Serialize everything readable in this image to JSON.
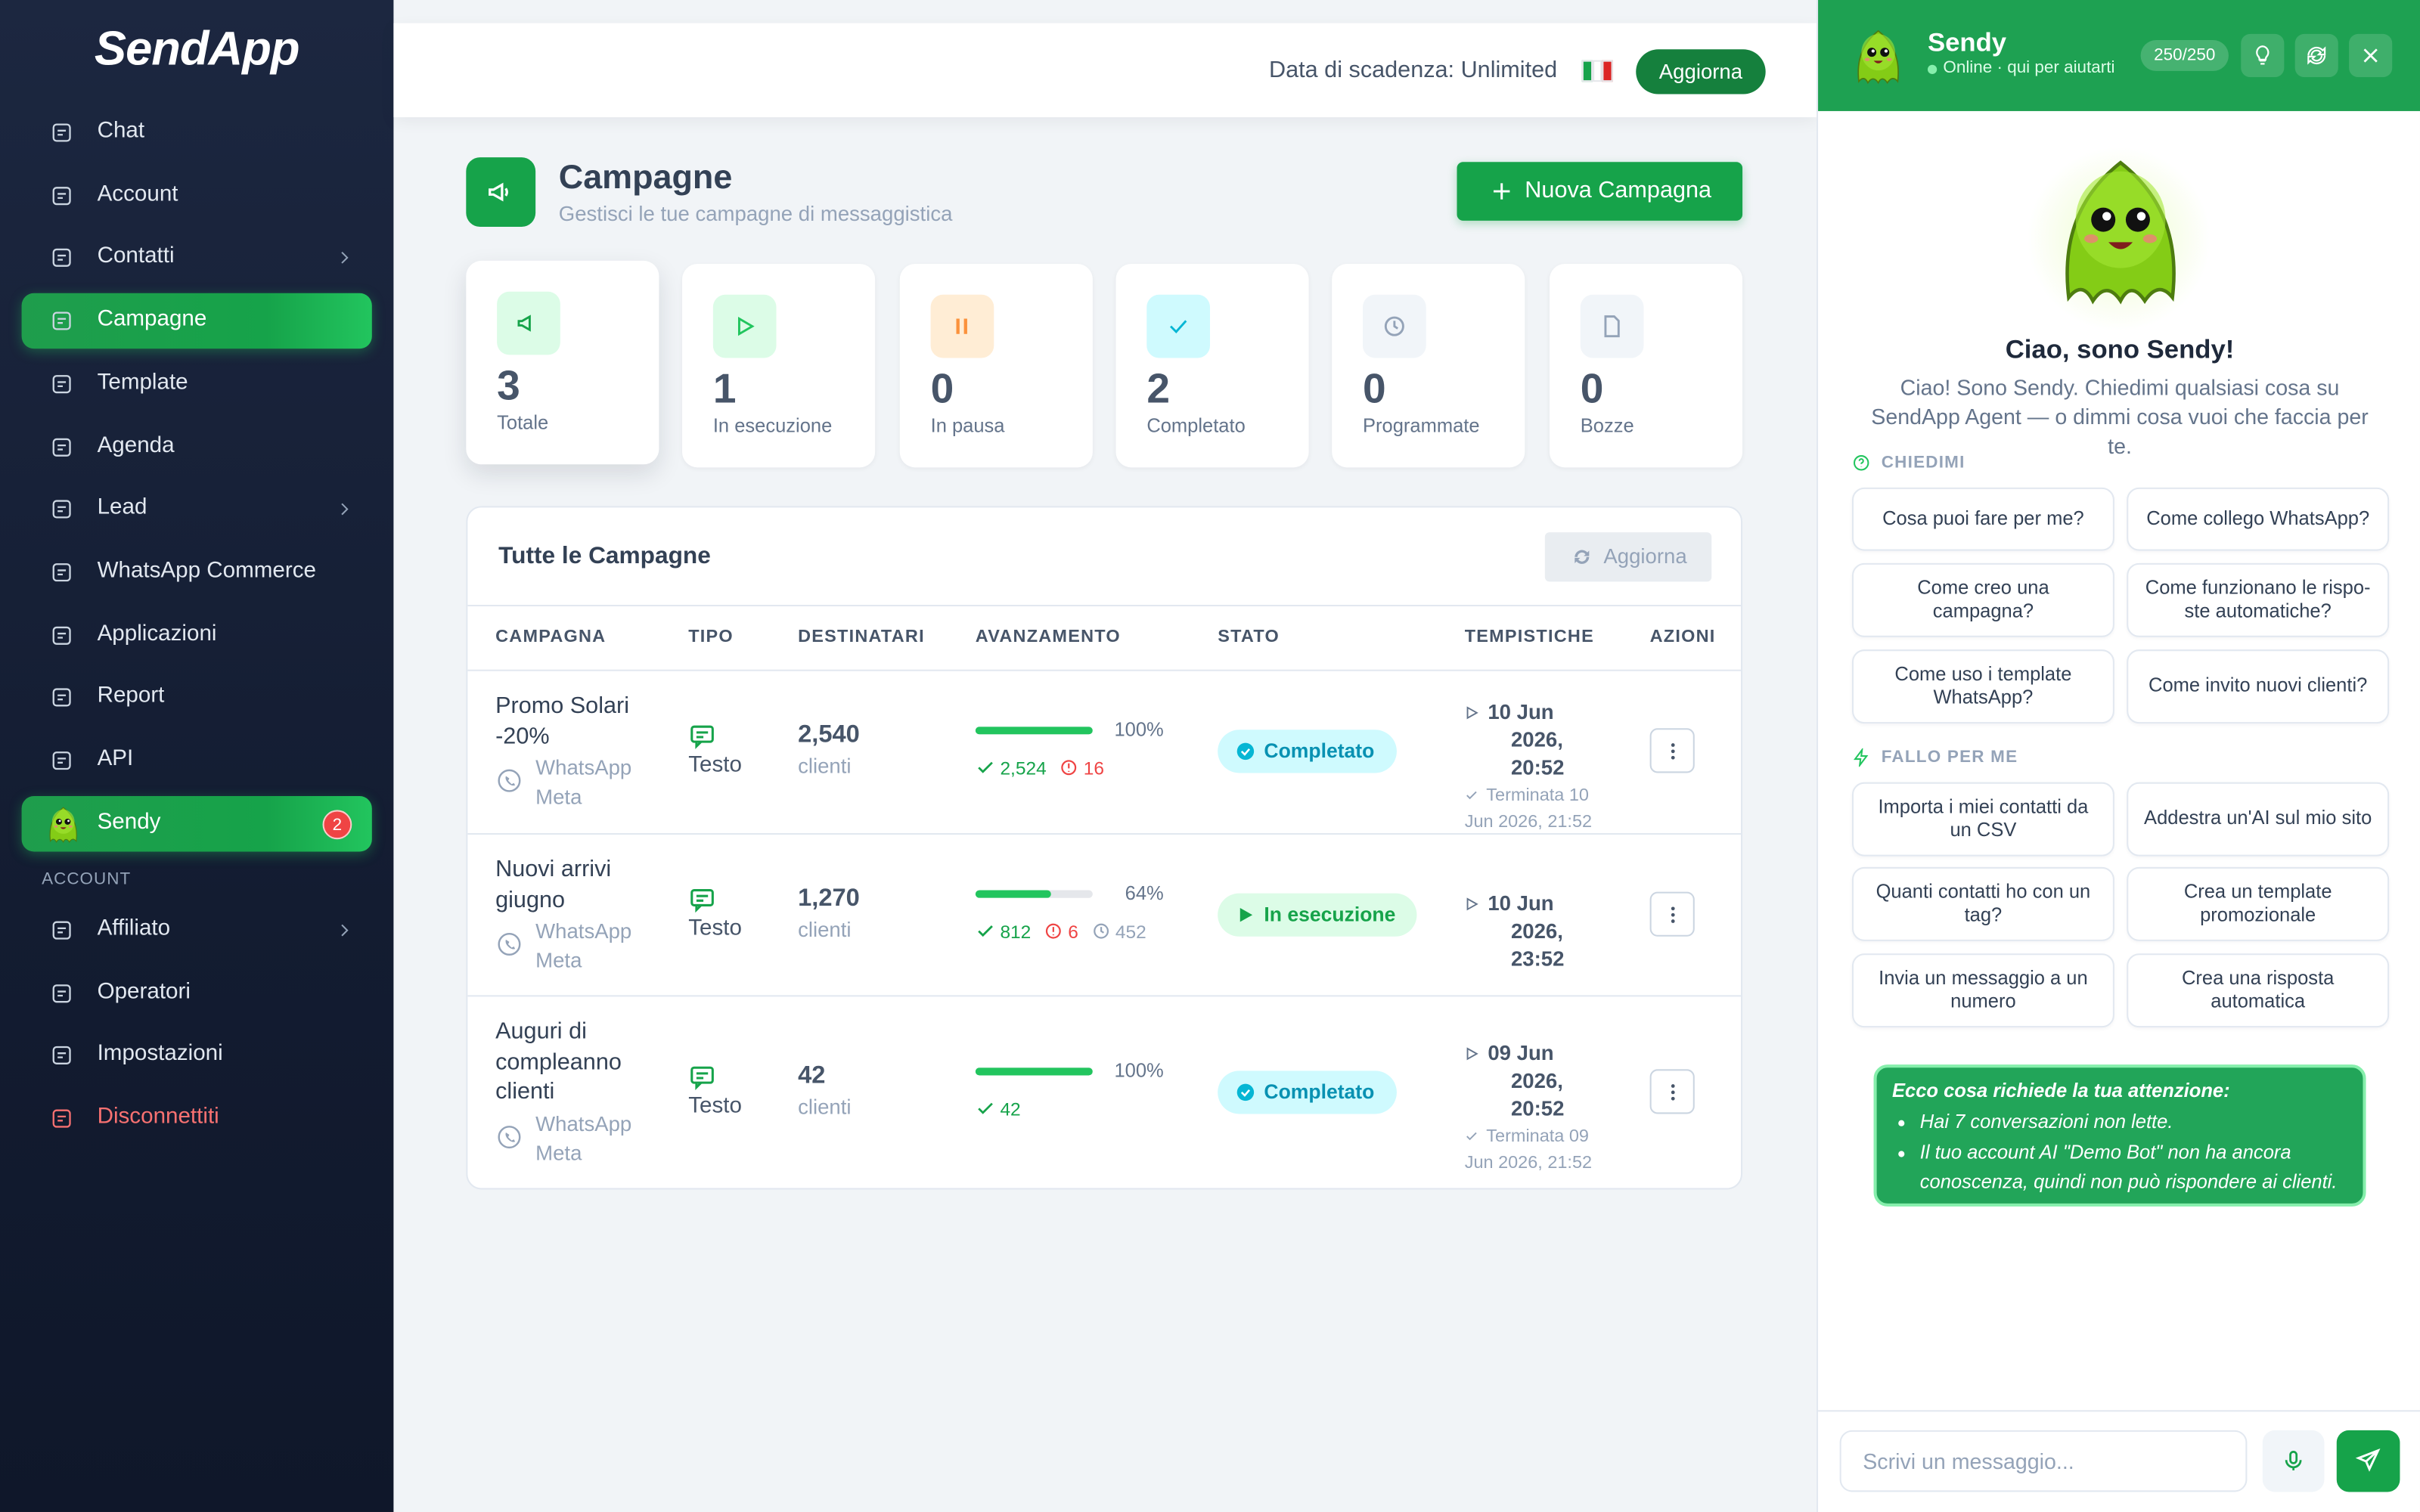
{
  "sidebar": {
    "logo": "SendApp",
    "nav": [
      {
        "label": "Chat"
      },
      {
        "label": "Account"
      },
      {
        "label": "Contatti",
        "submenu": true
      },
      {
        "label": "Campagne",
        "active": true
      },
      {
        "label": "Template"
      },
      {
        "label": "Agenda"
      },
      {
        "label": "Lead",
        "submenu": true
      },
      {
        "label": "WhatsApp Commerce"
      },
      {
        "label": "Applicazioni"
      },
      {
        "label": "Report"
      },
      {
        "label": "API"
      },
      {
        "label": "Sendy",
        "active": true,
        "badge": "2"
      }
    ],
    "section": "ACCOUNT",
    "account_nav": [
      {
        "label": "Affiliato",
        "submenu": true
      },
      {
        "label": "Operatori"
      },
      {
        "label": "Impostazioni"
      },
      {
        "label": "Disconnettiti",
        "danger": true
      }
    ]
  },
  "topbar": {
    "expiry": "Data di scadenza: Unlimited",
    "button": "Aggiorna"
  },
  "header": {
    "title": "Campagne",
    "subtitle": "Gestisci le tue campagne di messaggistica",
    "button": "Nuova Campagna"
  },
  "stats": [
    {
      "value": "3",
      "label": "Totale"
    },
    {
      "value": "1",
      "label": "In esecuzione"
    },
    {
      "value": "0",
      "label": "In pausa"
    },
    {
      "value": "2",
      "label": "Completato"
    },
    {
      "value": "0",
      "label": "Programmate"
    },
    {
      "value": "0",
      "label": "Bozze"
    }
  ],
  "table": {
    "title": "Tutte le Campagne",
    "refresh": "Aggiorna",
    "columns": [
      "CAMPAGNA",
      "TIPO",
      "DESTINATARI",
      "AVANZAMENTO",
      "STATO",
      "TEMPISTICHE",
      "AZIONI"
    ],
    "rows": [
      {
        "name": "Promo Solari -20%",
        "channel": "WhatsApp Meta",
        "type": "Testo",
        "recipients": "2,540",
        "unit": "clienti",
        "progress": 100,
        "progress_label": "100%",
        "sent": "2,524",
        "failed": "16",
        "status": "Completato",
        "start": "10 Jun 2026, 20:52",
        "end": "Terminata 10 Jun 2026, 21:52"
      },
      {
        "name": "Nuovi arrivi giugno",
        "channel": "WhatsApp Meta",
        "type": "Testo",
        "recipients": "1,270",
        "unit": "clienti",
        "progress": 64,
        "progress_label": "64%",
        "sent": "812",
        "failed": "6",
        "pending": "452",
        "status": "In esecuzione",
        "start": "10 Jun 2026, 23:52"
      },
      {
        "name": "Auguri di compleanno clienti",
        "channel": "WhatsApp Meta",
        "type": "Testo",
        "recipients": "42",
        "unit": "clienti",
        "progress": 100,
        "progress_label": "100%",
        "sent": "42",
        "status": "Completato",
        "start": "09 Jun 2026, 20:52",
        "end": "Terminata 09 Jun 2026, 21:52"
      }
    ]
  },
  "assistant": {
    "name": "Sendy",
    "status": "Online · qui per aiutarti",
    "counter": "250/250",
    "greeting": "Ciao, sono Sendy!",
    "intro": "Ciao! Sono Sendy. Chiedimi qualsiasi cosa su SendApp Agent — o dimmi cosa vuoi che faccia per te.",
    "ask_title": "CHIEDIMI",
    "ask": [
      "Cosa puoi fare per me?",
      "Come collego WhatsApp?",
      "Come creo una campagna?",
      "Come funzionano le rispo-ste automatiche?",
      "Come uso i template WhatsApp?",
      "Come invito nuovi clienti?"
    ],
    "do_title": "FALLO PER ME",
    "do": [
      "Importa i miei contatti da un CSV",
      "Addestra un'AI sul mio sito",
      "Quanti contatti ho con un tag?",
      "Crea un template promozionale",
      "Invia un messaggio a un numero",
      "Crea una risposta automatica"
    ],
    "attention_title": "Ecco cosa richiede la tua attenzione:",
    "attention": [
      "Hai 7 conversazioni non lette.",
      "Il tuo account AI \"Demo Bot\" non ha ancora conoscenza, quindi non può rispondere ai clienti."
    ],
    "placeholder": "Scrivi un messaggio..."
  }
}
